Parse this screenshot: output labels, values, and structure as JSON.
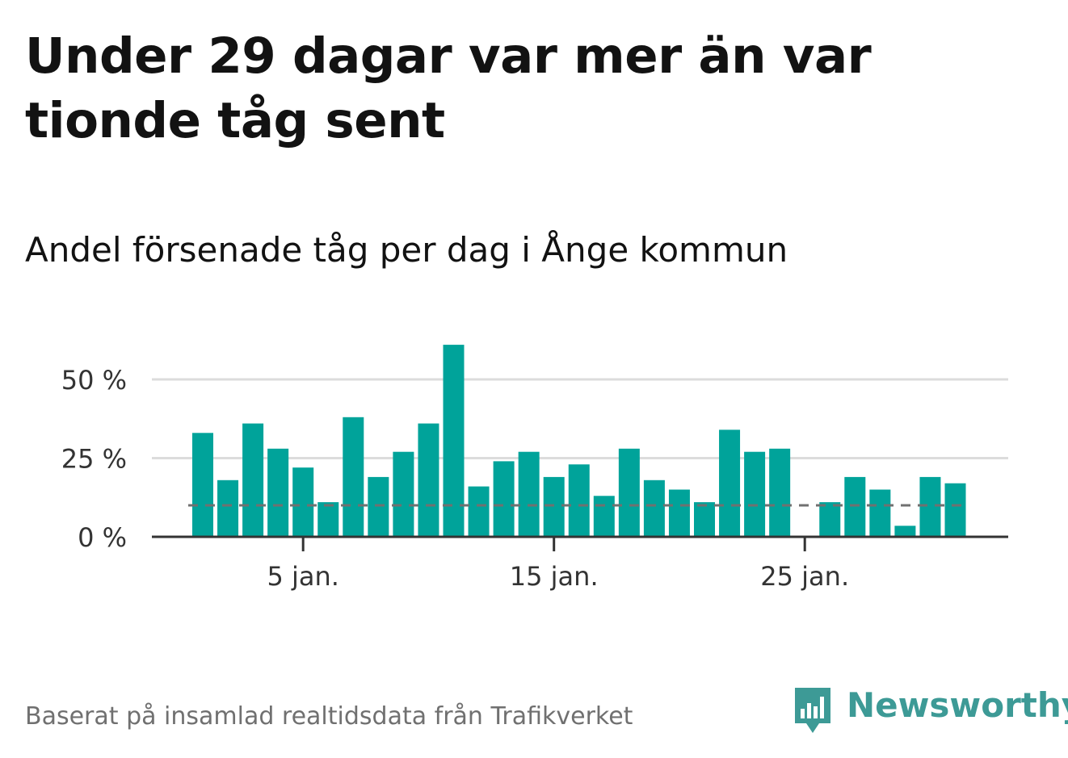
{
  "title": "Under 29 dagar var mer än var tionde tåg sent",
  "subtitle": "Andel försenade tåg per dag i Ånge kommun",
  "source": "Baserat på insamlad realtidsdata från Trafikverket",
  "brand": "Newsworthy",
  "colors": {
    "bar": "#00a39a",
    "grid": "#dcdcdc",
    "axis": "#333333",
    "reference": "#707070",
    "brand": "#3d9a96"
  },
  "chart_data": {
    "type": "bar",
    "x": [
      1,
      2,
      3,
      4,
      5,
      6,
      7,
      8,
      9,
      10,
      11,
      12,
      13,
      14,
      15,
      16,
      17,
      18,
      19,
      20,
      21,
      22,
      23,
      24,
      25,
      26,
      27,
      28,
      29,
      30,
      31
    ],
    "values": [
      33,
      18,
      36,
      28,
      22,
      11,
      38,
      19,
      27,
      36,
      61,
      16,
      24,
      27,
      19,
      23,
      13,
      28,
      18,
      15,
      11,
      34,
      27,
      28,
      0,
      11,
      19,
      15,
      3.5,
      19,
      17
    ],
    "reference_line": 10,
    "ylim": [
      0,
      62
    ],
    "yticks": [
      0,
      25,
      50
    ],
    "ytick_labels": [
      "0 %",
      "25 %",
      "50 %"
    ],
    "xticks": [
      5,
      15,
      25
    ],
    "xtick_labels": [
      "5 jan.",
      "15 jan.",
      "25 jan."
    ],
    "grid": true,
    "xlabel": "",
    "ylabel": ""
  }
}
